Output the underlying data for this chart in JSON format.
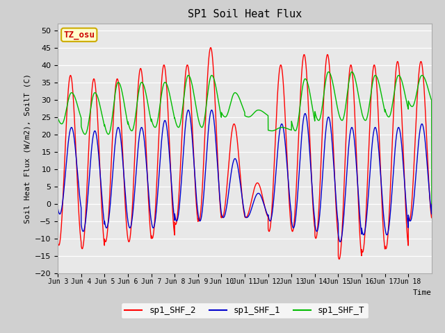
{
  "title": "SP1 Soil Heat Flux",
  "ylabel": "Soil Heat Flux (W/m2), SoilT (C)",
  "xlabel": "Time",
  "ylim": [
    -20,
    52
  ],
  "yticks": [
    -20,
    -15,
    -10,
    -5,
    0,
    5,
    10,
    15,
    20,
    25,
    30,
    35,
    40,
    45,
    50
  ],
  "fig_bg_color": "#d0d0d0",
  "plot_bg": "#e8e8e8",
  "annotation_text": "TZ_osu",
  "annotation_color": "#cc0000",
  "annotation_bg": "#ffffcc",
  "annotation_border": "#ccaa00",
  "line_colors": {
    "sp1_SHF_2": "#ff0000",
    "sp1_SHF_1": "#0000cc",
    "sp1_SHF_T": "#00bb00"
  },
  "xtick_labels": [
    "Jun 3",
    "Jun 4",
    "Jun 5",
    "Jun 6",
    "Jun 7",
    "Jun 8",
    "Jun 9",
    "Jun 10",
    "Jun 11",
    "Jun 12",
    "Jun 13",
    "Jun 14",
    "Jun 15",
    "Jun 16",
    "Jun 17",
    "Jun 18"
  ],
  "n_days": 16,
  "figsize": [
    6.4,
    4.8
  ],
  "dpi": 100
}
